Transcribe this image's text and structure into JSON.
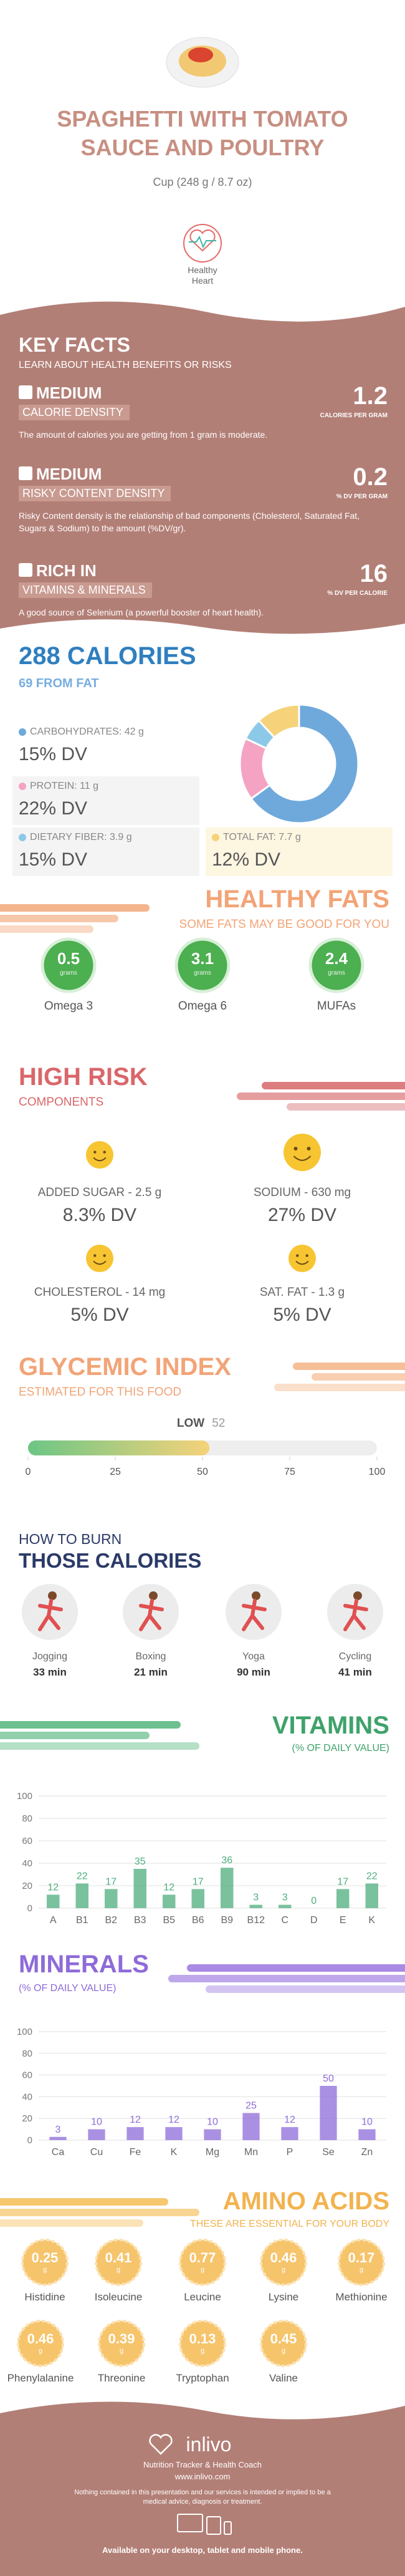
{
  "header": {
    "title": "SPAGHETTI WITH TOMATO SAUCE AND POULTRY",
    "serving": "Cup (248 g / 8.7 oz)",
    "badge": "Healthy Heart"
  },
  "key_facts": {
    "title": "KEY FACTS",
    "subtitle": "LEARN ABOUT HEALTH BENEFITS OR RISKS",
    "items": [
      {
        "level": "MEDIUM",
        "name": "CALORIE DENSITY",
        "value": 1.2,
        "unit": "CALORIES PER GRAM",
        "description": "The amount of calories you are getting from 1 gram is moderate."
      },
      {
        "level": "MEDIUM",
        "name": "RISKY CONTENT DENSITY",
        "value": 0.2,
        "unit": "% DV PER GRAM",
        "description": "Risky Content density is the relationship of bad components (Cholesterol, Saturated Fat, Sugars & Sodium) to the amount (%DV/gr)."
      },
      {
        "level": "RICH IN",
        "name": "VITAMINS & MINERALS",
        "value": 16,
        "unit": "% DV PER CALORIE",
        "description": "A good source of Selenium (a powerful booster of heart health)."
      }
    ]
  },
  "calories": {
    "title": "288 CALORIES",
    "subtitle": "69 FROM FAT",
    "nutrients": [
      {
        "label": "CARBOHYDRATES: 42 g",
        "grams": 42,
        "dv": "15% DV",
        "color": "#6fa9dc"
      },
      {
        "label": "PROTEIN: 11 g",
        "grams": 11,
        "dv": "22% DV",
        "color": "#f4a3c3"
      },
      {
        "label": "DIETARY FIBER: 3.9 g",
        "grams": 3.9,
        "dv": "15% DV",
        "color": "#8cc9e8"
      },
      {
        "label": "TOTAL FAT: 7.7 g",
        "grams": 7.7,
        "dv": "12% DV",
        "color": "#f6d27a"
      }
    ]
  },
  "healthy_fats": {
    "title": "HEALTHY FATS",
    "subtitle": "SOME FATS MAY BE GOOD FOR YOU",
    "unit": "grams",
    "items": [
      {
        "name": "Omega 3",
        "value": 0.5
      },
      {
        "name": "Omega 6",
        "value": 3.1
      },
      {
        "name": "MUFAs",
        "value": 2.4
      }
    ]
  },
  "high_risk": {
    "title": "HIGH RISK",
    "subtitle": "COMPONENTS",
    "items": [
      {
        "label": "ADDED SUGAR - 2.5 g",
        "dv": "8.3% DV"
      },
      {
        "label": "SODIUM - 630 mg",
        "dv": "27% DV"
      },
      {
        "label": "CHOLESTEROL - 14 mg",
        "dv": "5% DV"
      },
      {
        "label": "SAT. FAT - 1.3 g",
        "dv": "5% DV"
      }
    ]
  },
  "glycemic_index": {
    "title": "GLYCEMIC INDEX",
    "subtitle": "ESTIMATED FOR THIS FOOD",
    "level": "LOW",
    "value": 52,
    "xlim": [
      0,
      100
    ],
    "xticks": [
      0,
      25,
      50,
      75,
      100
    ]
  },
  "burn": {
    "title_1": "HOW TO BURN",
    "title_2": "THOSE CALORIES",
    "activities": [
      {
        "name": "Jogging",
        "time": "33 min"
      },
      {
        "name": "Boxing",
        "time": "21 min"
      },
      {
        "name": "Yoga",
        "time": "90 min"
      },
      {
        "name": "Cycling",
        "time": "41 min"
      }
    ]
  },
  "vitamins": {
    "chart_data": {
      "type": "bar",
      "title": "VITAMINS",
      "subtitle": "(% OF DAILY VALUE)",
      "categories": [
        "A",
        "B1",
        "B2",
        "B3",
        "B5",
        "B6",
        "B9",
        "B12",
        "C",
        "D",
        "E",
        "K"
      ],
      "values": [
        12,
        22,
        17,
        35,
        12,
        17,
        36,
        3,
        3,
        0,
        17,
        22
      ],
      "color": "#4dae7c",
      "ylim": [
        0,
        100
      ],
      "yticks": [
        0,
        20,
        40,
        60,
        80,
        100
      ],
      "grid": true
    }
  },
  "minerals": {
    "chart_data": {
      "type": "bar",
      "title": "MINERALS",
      "subtitle": "(% OF DAILY VALUE)",
      "categories": [
        "Ca",
        "Cu",
        "Fe",
        "K",
        "Mg",
        "Mn",
        "P",
        "Se",
        "Zn"
      ],
      "values": [
        3,
        10,
        12,
        12,
        10,
        25,
        12,
        50,
        10
      ],
      "color": "#8e6bd8",
      "ylim": [
        0,
        100
      ],
      "yticks": [
        0,
        20,
        40,
        60,
        80,
        100
      ],
      "grid": true
    }
  },
  "amino_acids": {
    "title": "AMINO ACIDS",
    "subtitle": "THESE ARE ESSENTIAL FOR YOUR BODY",
    "unit": "g",
    "items": [
      {
        "name": "Histidine",
        "value": 0.25
      },
      {
        "name": "Isoleucine",
        "value": 0.41
      },
      {
        "name": "Leucine",
        "value": 0.77
      },
      {
        "name": "Lysine",
        "value": 0.46
      },
      {
        "name": "Methionine",
        "value": 0.17
      },
      {
        "name": "Phenylalanine",
        "value": 0.46
      },
      {
        "name": "Threonine",
        "value": 0.39
      },
      {
        "name": "Tryptophan",
        "value": 0.13
      },
      {
        "name": "Valine",
        "value": 0.45
      }
    ]
  },
  "footer": {
    "brand": "inlivo",
    "tagline": "Nutrition Tracker & Health Coach",
    "url": "www.inlivo.com",
    "disclaimer": "Nothing contained in this presentation and our services is intended or implied to be a medical advice, diagnosis or treatment.",
    "availability": "Available on your desktop, tablet and mobile phone."
  }
}
